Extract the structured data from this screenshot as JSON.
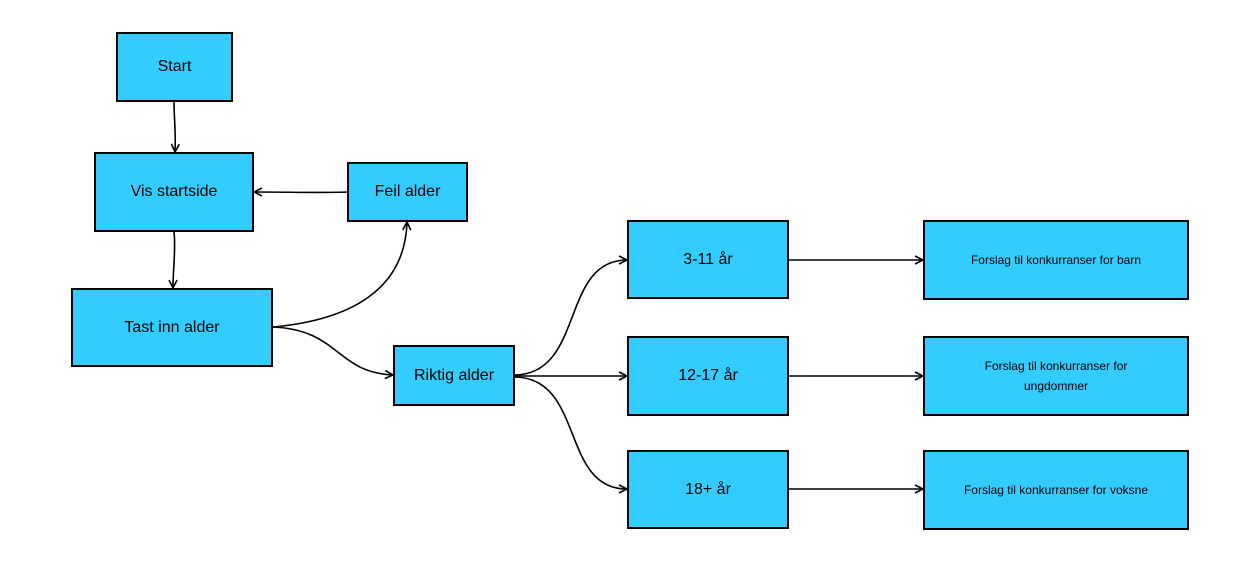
{
  "colors": {
    "node_fill": "#33ccff",
    "stroke": "#000000"
  },
  "nodes": {
    "start": "Start",
    "vis_startside": "Vis startside",
    "feil_alder": "Feil alder",
    "tast_inn_alder": "Tast inn alder",
    "riktig_alder": "Riktig alder",
    "age_3_11": "3-11 år",
    "age_12_17": "12-17 år",
    "age_18_plus": "18+ år",
    "forslag_barn": "Forslag til konkurranser for barn",
    "forslag_ungdommer": "Forslag til konkurranser for ungdommer",
    "forslag_voksne": "Forslag til konkurranser for voksne"
  },
  "edges": [
    [
      "start",
      "vis_startside"
    ],
    [
      "vis_startside",
      "tast_inn_alder"
    ],
    [
      "tast_inn_alder",
      "feil_alder"
    ],
    [
      "feil_alder",
      "vis_startside"
    ],
    [
      "tast_inn_alder",
      "riktig_alder"
    ],
    [
      "riktig_alder",
      "age_3_11"
    ],
    [
      "riktig_alder",
      "age_12_17"
    ],
    [
      "riktig_alder",
      "age_18_plus"
    ],
    [
      "age_3_11",
      "forslag_barn"
    ],
    [
      "age_12_17",
      "forslag_ungdommer"
    ],
    [
      "age_18_plus",
      "forslag_voksne"
    ]
  ]
}
